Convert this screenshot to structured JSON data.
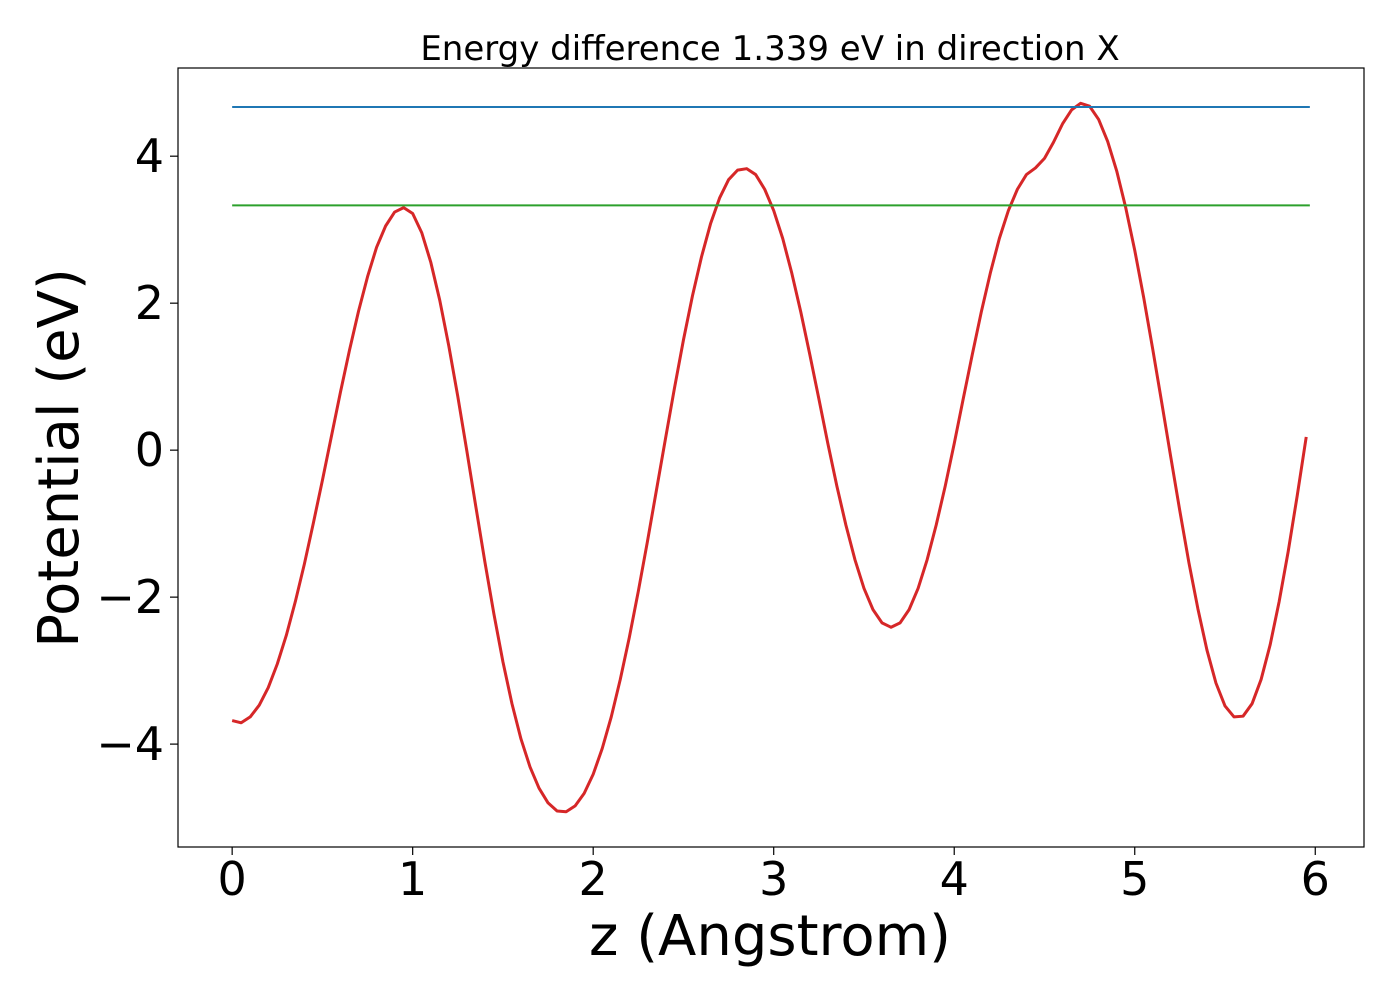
{
  "chart_data": {
    "type": "line",
    "title": "Energy difference 1.339 eV in direction X",
    "xlabel": "z (Angstrom)",
    "ylabel": "Potential (eV)",
    "xlim": [
      -0.3,
      6.27
    ],
    "ylim": [
      -5.4,
      5.2
    ],
    "xticks": [
      0,
      1,
      2,
      3,
      4,
      5,
      6
    ],
    "xtick_labels": [
      "0",
      "1",
      "2",
      "3",
      "4",
      "5",
      "6"
    ],
    "yticks": [
      -4,
      -2,
      0,
      2,
      4
    ],
    "ytick_labels": [
      "−4",
      "−2",
      "0",
      "2",
      "4"
    ],
    "grid": false,
    "series": [
      {
        "color": "#d62728",
        "style": "curve",
        "x": [
          0.0,
          0.05,
          0.1,
          0.15,
          0.2,
          0.25,
          0.3,
          0.35,
          0.4,
          0.45,
          0.5,
          0.55,
          0.6,
          0.65,
          0.7,
          0.75,
          0.8,
          0.85,
          0.9,
          0.95,
          1.0,
          1.05,
          1.1,
          1.15,
          1.2,
          1.25,
          1.3,
          1.35,
          1.4,
          1.45,
          1.5,
          1.55,
          1.6,
          1.65,
          1.7,
          1.75,
          1.8,
          1.85,
          1.9,
          1.95,
          2.0,
          2.05,
          2.1,
          2.15,
          2.2,
          2.25,
          2.3,
          2.35,
          2.4,
          2.45,
          2.5,
          2.55,
          2.6,
          2.65,
          2.7,
          2.75,
          2.8,
          2.85,
          2.9,
          2.95,
          3.0,
          3.05,
          3.1,
          3.15,
          3.2,
          3.25,
          3.3,
          3.35,
          3.4,
          3.45,
          3.5,
          3.55,
          3.6,
          3.65,
          3.7,
          3.75,
          3.8,
          3.85,
          3.9,
          3.95,
          4.0,
          4.05,
          4.1,
          4.15,
          4.2,
          4.25,
          4.3,
          4.35,
          4.4,
          4.45,
          4.5,
          4.55,
          4.6,
          4.65,
          4.7,
          4.75,
          4.8,
          4.85,
          4.9,
          4.95,
          5.0,
          5.05,
          5.1,
          5.15,
          5.2,
          5.25,
          5.3,
          5.35,
          5.4,
          5.45,
          5.5,
          5.55,
          5.6,
          5.65,
          5.7,
          5.75,
          5.8,
          5.85,
          5.9,
          5.95
        ],
        "y": [
          -3.68,
          -3.71,
          -3.63,
          -3.47,
          -3.23,
          -2.91,
          -2.52,
          -2.06,
          -1.55,
          -0.99,
          -0.41,
          0.19,
          0.79,
          1.36,
          1.89,
          2.36,
          2.76,
          3.05,
          3.24,
          3.3,
          3.22,
          2.96,
          2.56,
          2.04,
          1.42,
          0.73,
          -0.01,
          -0.77,
          -1.52,
          -2.23,
          -2.88,
          -3.45,
          -3.93,
          -4.31,
          -4.6,
          -4.8,
          -4.91,
          -4.92,
          -4.84,
          -4.67,
          -4.41,
          -4.06,
          -3.63,
          -3.12,
          -2.55,
          -1.92,
          -1.25,
          -0.55,
          0.15,
          0.84,
          1.5,
          2.1,
          2.63,
          3.08,
          3.43,
          3.68,
          3.81,
          3.83,
          3.75,
          3.55,
          3.26,
          2.88,
          2.41,
          1.88,
          1.3,
          0.7,
          0.09,
          -0.49,
          -1.02,
          -1.49,
          -1.88,
          -2.17,
          -2.35,
          -2.41,
          -2.35,
          -2.17,
          -1.88,
          -1.49,
          -1.02,
          -0.49,
          0.09,
          0.7,
          1.3,
          1.88,
          2.41,
          2.88,
          3.26,
          3.55,
          3.75,
          3.84,
          3.97,
          4.19,
          4.44,
          4.63,
          4.72,
          4.68,
          4.5,
          4.2,
          3.8,
          3.3,
          2.72,
          2.07,
          1.37,
          0.64,
          -0.1,
          -0.83,
          -1.53,
          -2.16,
          -2.72,
          -3.17,
          -3.48,
          -3.63,
          -3.62,
          -3.45,
          -3.12,
          -2.65,
          -2.06,
          -1.38,
          -0.62,
          0.18
        ]
      },
      {
        "color": "#1f77b4",
        "style": "line",
        "x": [
          0.0,
          5.97
        ],
        "y": [
          4.67,
          4.67
        ]
      },
      {
        "color": "#2ca02c",
        "style": "line",
        "x": [
          0.0,
          5.97
        ],
        "y": [
          3.33,
          3.33
        ]
      }
    ]
  }
}
